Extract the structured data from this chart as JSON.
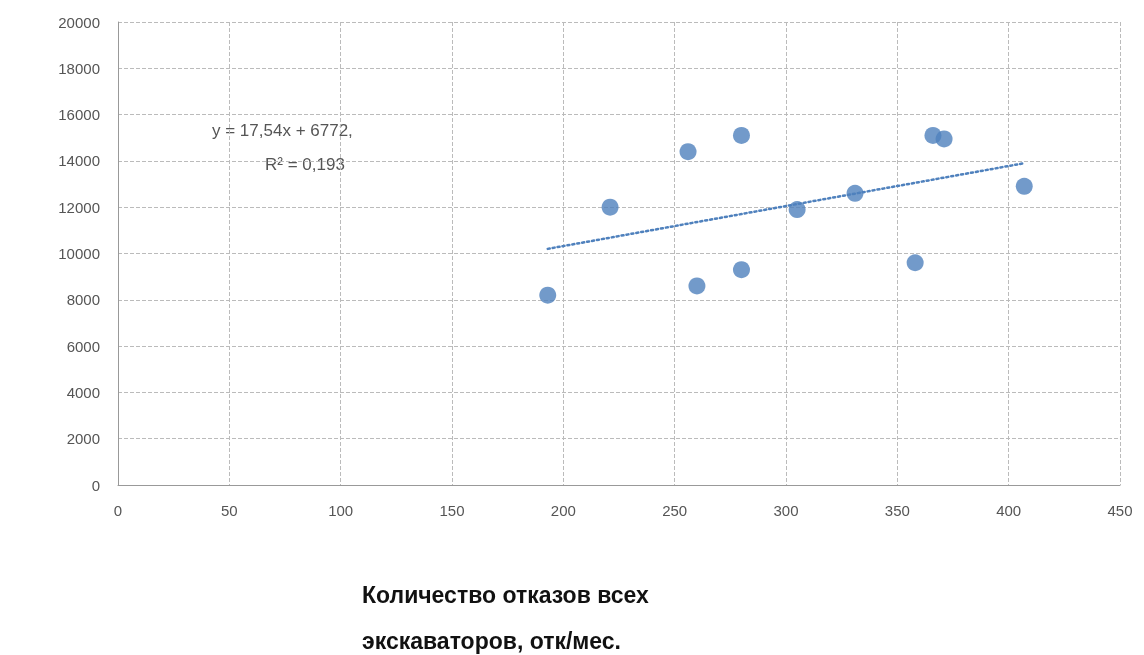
{
  "chart_data": {
    "type": "scatter",
    "xlabel": "Количество отказов всех экскаваторов, отк/мес.",
    "annotations": [
      "y = 17,54x + 6772,",
      "R² = 0,193"
    ],
    "xlim": [
      0,
      450
    ],
    "xticks": [
      0,
      50,
      100,
      150,
      200,
      250,
      300,
      350,
      400,
      450
    ],
    "ylim": [
      0,
      20000
    ],
    "yticks": [
      0,
      2000,
      4000,
      6000,
      8000,
      10000,
      12000,
      14000,
      16000,
      18000,
      20000
    ],
    "grid": true,
    "series": [
      {
        "marker": "circle",
        "color": "#4f81bd",
        "x": [
          193,
          221,
          256,
          280,
          260,
          280,
          305,
          331,
          366,
          371,
          358,
          407
        ],
        "values": [
          8200,
          12000,
          14400,
          15100,
          8600,
          9300,
          11900,
          12600,
          15100,
          14950,
          9600,
          12900
        ]
      },
      {
        "type": "line",
        "marker": "none",
        "color": "#4f81bd",
        "line_style": "dotted",
        "x": [
          193,
          407
        ],
        "values": [
          10200,
          13900
        ]
      }
    ]
  }
}
